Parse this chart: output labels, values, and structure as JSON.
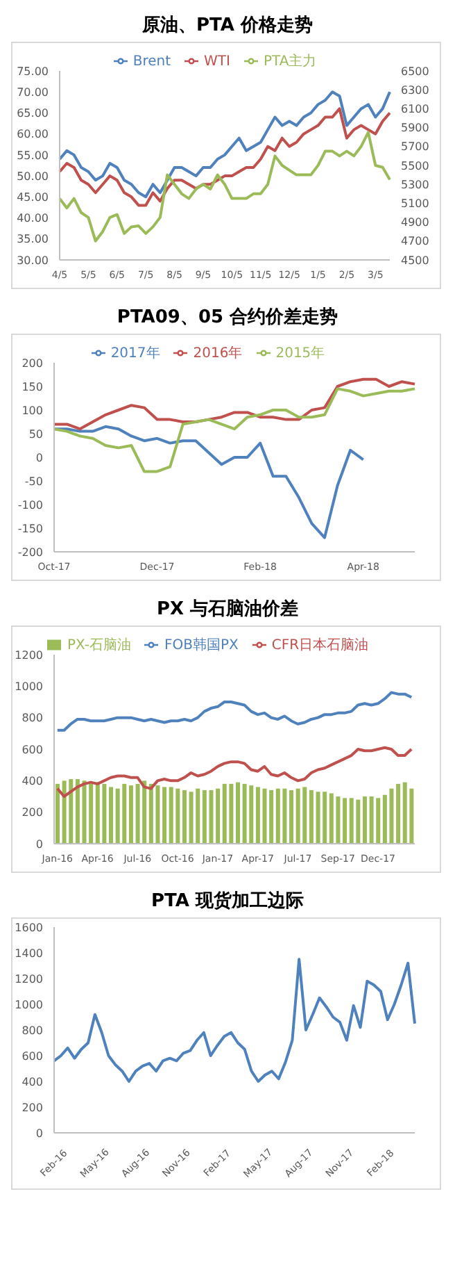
{
  "chart_data": [
    {
      "type": "line",
      "title": "原油、PTA 价格走势",
      "legend": "top",
      "categories": [
        "4/5",
        null,
        null,
        null,
        "5/5",
        null,
        null,
        null,
        "6/5",
        null,
        null,
        null,
        "7/5",
        null,
        null,
        null,
        "8/5",
        null,
        null,
        null,
        "9/5",
        null,
        null,
        null,
        "10/5",
        null,
        null,
        null,
        "11/5",
        null,
        null,
        null,
        "12/5",
        null,
        null,
        null,
        "1/5",
        null,
        null,
        null,
        "2/5",
        null,
        null,
        null,
        "3/5",
        null,
        null
      ],
      "ylim": [
        30,
        75
      ],
      "yticks": [
        {
          "value": 30,
          "label": "30.00"
        },
        {
          "value": 35,
          "label": "35.00"
        },
        {
          "value": 40,
          "label": "40.00"
        },
        {
          "value": 45,
          "label": "45.00"
        },
        {
          "value": 50,
          "label": "50.00"
        },
        {
          "value": 55,
          "label": "55.00"
        },
        {
          "value": 60,
          "label": "60.00"
        },
        {
          "value": 65,
          "label": "65.00"
        },
        {
          "value": 70,
          "label": "70.00"
        },
        {
          "value": 75,
          "label": "75.00"
        }
      ],
      "y2lim": [
        4500,
        6500
      ],
      "y2ticks": [
        4500,
        4700,
        4900,
        5100,
        5300,
        5500,
        5700,
        5900,
        6100,
        6300,
        6500
      ],
      "series": [
        {
          "name": "Brent",
          "color": "#4f81bd",
          "values": [
            54,
            56,
            55,
            52,
            51,
            49,
            50,
            53,
            52,
            49,
            48,
            46,
            45,
            48,
            46,
            49,
            52,
            52,
            51,
            50,
            52,
            52,
            54,
            55,
            57,
            59,
            56,
            57,
            58,
            61,
            64,
            62,
            63,
            62,
            64,
            65,
            67,
            68,
            70,
            69,
            62,
            64,
            66,
            67,
            64,
            66,
            70
          ]
        },
        {
          "name": "WTI",
          "color": "#c0504d",
          "values": [
            51,
            53,
            52,
            49,
            48,
            46,
            48,
            50,
            49,
            46,
            45,
            43,
            43,
            46,
            44,
            47,
            49,
            49,
            48,
            47,
            48,
            48,
            49,
            50,
            50,
            51,
            52,
            52,
            54,
            57,
            56,
            59,
            57,
            58,
            60,
            61,
            62,
            64,
            64,
            66,
            59,
            61,
            62,
            61,
            60,
            63,
            65
          ]
        },
        {
          "name": "PTA主力",
          "color": "#9bbb59",
          "axis": "y2",
          "values": [
            5150,
            5050,
            5150,
            5000,
            4950,
            4700,
            4800,
            4950,
            4980,
            4780,
            4850,
            4860,
            4780,
            4850,
            4950,
            5400,
            5300,
            5200,
            5150,
            5250,
            5300,
            5250,
            5400,
            5300,
            5150,
            5150,
            5150,
            5200,
            5200,
            5300,
            5600,
            5500,
            5450,
            5400,
            5400,
            5400,
            5500,
            5650,
            5650,
            5600,
            5650,
            5600,
            5700,
            5850,
            5500,
            5480,
            5350
          ]
        }
      ]
    },
    {
      "type": "line",
      "title": "PTA09、05 合约价差走势",
      "legend": "top",
      "categories": [
        "Oct-17",
        null,
        null,
        null,
        null,
        null,
        null,
        null,
        "Dec-17",
        null,
        null,
        null,
        null,
        null,
        null,
        null,
        "Feb-18",
        null,
        null,
        null,
        null,
        null,
        null,
        null,
        "Apr-18",
        null,
        null,
        null,
        null
      ],
      "ylim": [
        -200,
        200
      ],
      "yticks": [
        -200,
        -150,
        -100,
        -50,
        0,
        50,
        100,
        150,
        200
      ],
      "series": [
        {
          "name": "2017年",
          "color": "#4f81bd",
          "values": [
            60,
            60,
            55,
            55,
            65,
            60,
            45,
            35,
            40,
            30,
            35,
            35,
            10,
            -15,
            0,
            0,
            30,
            -40,
            -40,
            -85,
            -140,
            -170,
            -60,
            15,
            -5,
            null,
            null,
            null,
            null
          ]
        },
        {
          "name": "2016年",
          "color": "#c0504d",
          "values": [
            70,
            70,
            60,
            75,
            90,
            100,
            110,
            105,
            80,
            80,
            75,
            75,
            80,
            85,
            95,
            95,
            85,
            85,
            80,
            80,
            100,
            105,
            150,
            160,
            165,
            165,
            150,
            160,
            155
          ]
        },
        {
          "name": "2015年",
          "color": "#9bbb59",
          "values": [
            60,
            55,
            45,
            40,
            25,
            20,
            25,
            -30,
            -30,
            -20,
            70,
            75,
            80,
            70,
            60,
            85,
            90,
            100,
            100,
            85,
            85,
            90,
            145,
            140,
            130,
            135,
            140,
            140,
            145
          ]
        }
      ]
    },
    {
      "type": "line",
      "title": "PX 与石脑油价差",
      "legend": "top",
      "categories": [
        "Jan-16",
        null,
        null,
        null,
        null,
        null,
        "Apr-16",
        null,
        null,
        null,
        null,
        null,
        "Jul-16",
        null,
        null,
        null,
        null,
        null,
        "Oct-16",
        null,
        null,
        null,
        null,
        null,
        "Jan-17",
        null,
        null,
        null,
        null,
        null,
        "Apr-17",
        null,
        null,
        null,
        null,
        null,
        "Jul-17",
        null,
        null,
        null,
        null,
        null,
        "Sep-17",
        null,
        null,
        null,
        null,
        null,
        "Dec-17",
        null,
        null,
        null,
        null,
        null
      ],
      "ylim": [
        0,
        1200
      ],
      "yticks": [
        0,
        200,
        400,
        600,
        800,
        1000,
        1200
      ],
      "series": [
        {
          "name": "PX-石脑油",
          "type": "bar",
          "color": "#9bbb59",
          "values": [
            380,
            400,
            410,
            410,
            400,
            380,
            390,
            380,
            360,
            350,
            380,
            370,
            380,
            400,
            380,
            370,
            360,
            360,
            350,
            340,
            330,
            350,
            340,
            340,
            350,
            380,
            380,
            390,
            380,
            370,
            360,
            350,
            340,
            350,
            350,
            340,
            350,
            360,
            340,
            330,
            330,
            320,
            300,
            290,
            290,
            280,
            300,
            300,
            290,
            310,
            350,
            380,
            390,
            350
          ]
        },
        {
          "name": "FOB韩国PX",
          "color": "#4f81bd",
          "values": [
            720,
            720,
            760,
            790,
            790,
            780,
            780,
            780,
            790,
            800,
            800,
            800,
            790,
            780,
            790,
            780,
            770,
            780,
            780,
            790,
            780,
            800,
            840,
            860,
            870,
            900,
            900,
            890,
            880,
            840,
            820,
            830,
            800,
            790,
            810,
            780,
            760,
            770,
            790,
            800,
            820,
            820,
            830,
            830,
            840,
            880,
            890,
            880,
            890,
            920,
            960,
            950,
            950,
            930
          ]
        },
        {
          "name": "CFR日本石脑油",
          "color": "#c0504d",
          "values": [
            350,
            300,
            330,
            360,
            380,
            390,
            380,
            400,
            420,
            430,
            430,
            420,
            420,
            360,
            350,
            400,
            410,
            400,
            400,
            420,
            450,
            430,
            440,
            460,
            490,
            510,
            520,
            520,
            510,
            470,
            460,
            490,
            440,
            430,
            450,
            420,
            400,
            410,
            450,
            470,
            480,
            500,
            520,
            540,
            560,
            600,
            590,
            590,
            600,
            610,
            600,
            560,
            560,
            600
          ]
        }
      ]
    },
    {
      "type": "line",
      "title": "PTA 现货加工边际",
      "categories": [
        "Feb-16",
        null,
        null,
        null,
        null,
        null,
        "May-16",
        null,
        null,
        null,
        null,
        null,
        "Aug-16",
        null,
        null,
        null,
        null,
        null,
        "Nov-16",
        null,
        null,
        null,
        null,
        null,
        "Feb-17",
        null,
        null,
        null,
        null,
        null,
        "May-17",
        null,
        null,
        null,
        null,
        null,
        "Aug-17",
        null,
        null,
        null,
        null,
        null,
        "Nov-17",
        null,
        null,
        null,
        null,
        null,
        "Feb-18",
        null,
        null,
        null,
        null,
        null
      ],
      "ylim": [
        0,
        1600
      ],
      "yticks": [
        0,
        200,
        400,
        600,
        800,
        1000,
        1200,
        1400,
        1600
      ],
      "series": [
        {
          "color": "#4f81bd",
          "values": [
            560,
            600,
            660,
            580,
            650,
            700,
            920,
            780,
            600,
            530,
            480,
            400,
            480,
            520,
            540,
            480,
            560,
            580,
            560,
            620,
            640,
            720,
            780,
            600,
            680,
            750,
            780,
            700,
            650,
            480,
            400,
            450,
            480,
            420,
            550,
            720,
            1350,
            800,
            920,
            1050,
            980,
            900,
            860,
            720,
            990,
            820,
            1180,
            1150,
            1100,
            880,
            1000,
            1150,
            1320,
            850
          ]
        }
      ]
    }
  ]
}
